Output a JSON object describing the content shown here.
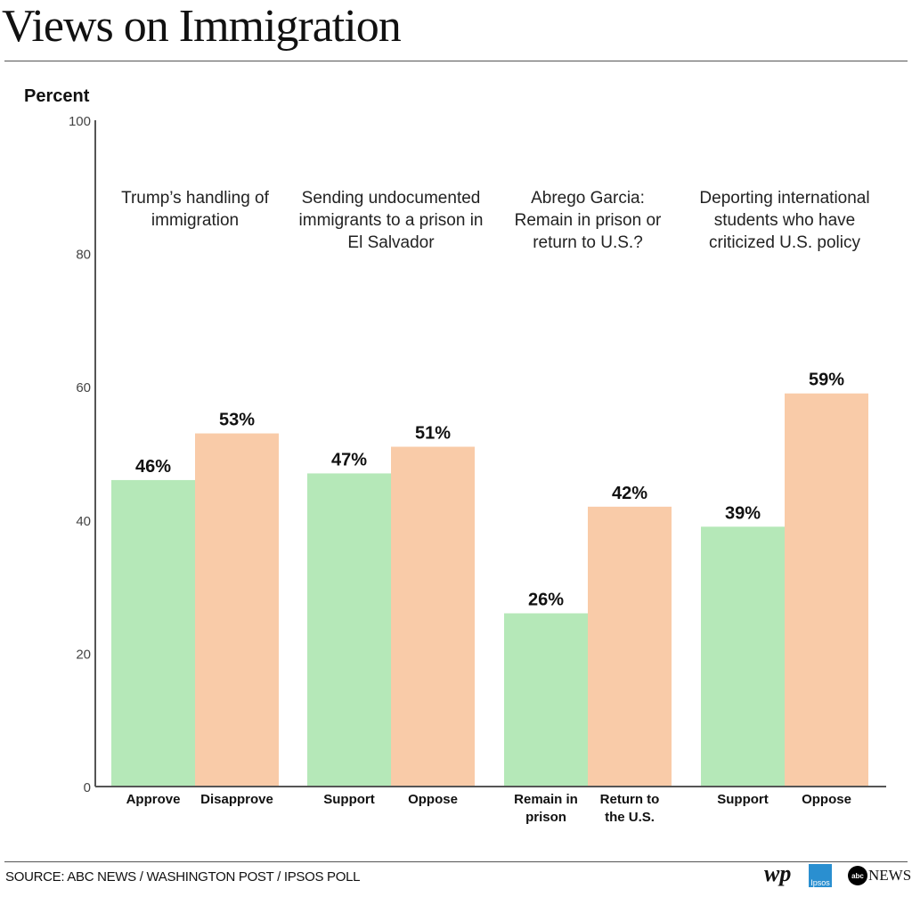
{
  "title": "Views on Immigration",
  "source": "SOURCE: ABC NEWS / WASHINGTON POST / IPSOS POLL",
  "logos": {
    "wp": "wp",
    "ipsos": "Ipsos",
    "abc": "abc",
    "news": "NEWS"
  },
  "colors": {
    "green": "#b5e8b8",
    "orange": "#f9cba8"
  },
  "chart_data": {
    "type": "bar",
    "ylabel": "Percent",
    "ylim": [
      0,
      100
    ],
    "yticks": [
      0,
      20,
      40,
      60,
      80,
      100
    ],
    "grid": false,
    "groups": [
      {
        "title": [
          "Trump’s handling of",
          "immigration"
        ],
        "bars": [
          {
            "label": [
              "Approve"
            ],
            "value": 46,
            "data_label": "46%",
            "color": "green"
          },
          {
            "label": [
              "Disapprove"
            ],
            "value": 53,
            "data_label": "53%",
            "color": "orange"
          }
        ]
      },
      {
        "title": [
          "Sending undocumented",
          "immigrants to a prison in",
          "El Salvador"
        ],
        "bars": [
          {
            "label": [
              "Support"
            ],
            "value": 47,
            "data_label": "47%",
            "color": "green"
          },
          {
            "label": [
              "Oppose"
            ],
            "value": 51,
            "data_label": "51%",
            "color": "orange"
          }
        ]
      },
      {
        "title": [
          "Abrego Garcia:",
          "Remain in prison or",
          "return to U.S.?"
        ],
        "bars": [
          {
            "label": [
              "Remain in",
              "prison"
            ],
            "value": 26,
            "data_label": "26%",
            "color": "green"
          },
          {
            "label": [
              "Return to",
              "the U.S."
            ],
            "value": 42,
            "data_label": "42%",
            "color": "orange"
          }
        ]
      },
      {
        "title": [
          "Deporting international",
          "students who have",
          "criticized U.S. policy"
        ],
        "bars": [
          {
            "label": [
              "Support"
            ],
            "value": 39,
            "data_label": "39%",
            "color": "green"
          },
          {
            "label": [
              "Oppose"
            ],
            "value": 59,
            "data_label": "59%",
            "color": "orange"
          }
        ]
      }
    ]
  }
}
